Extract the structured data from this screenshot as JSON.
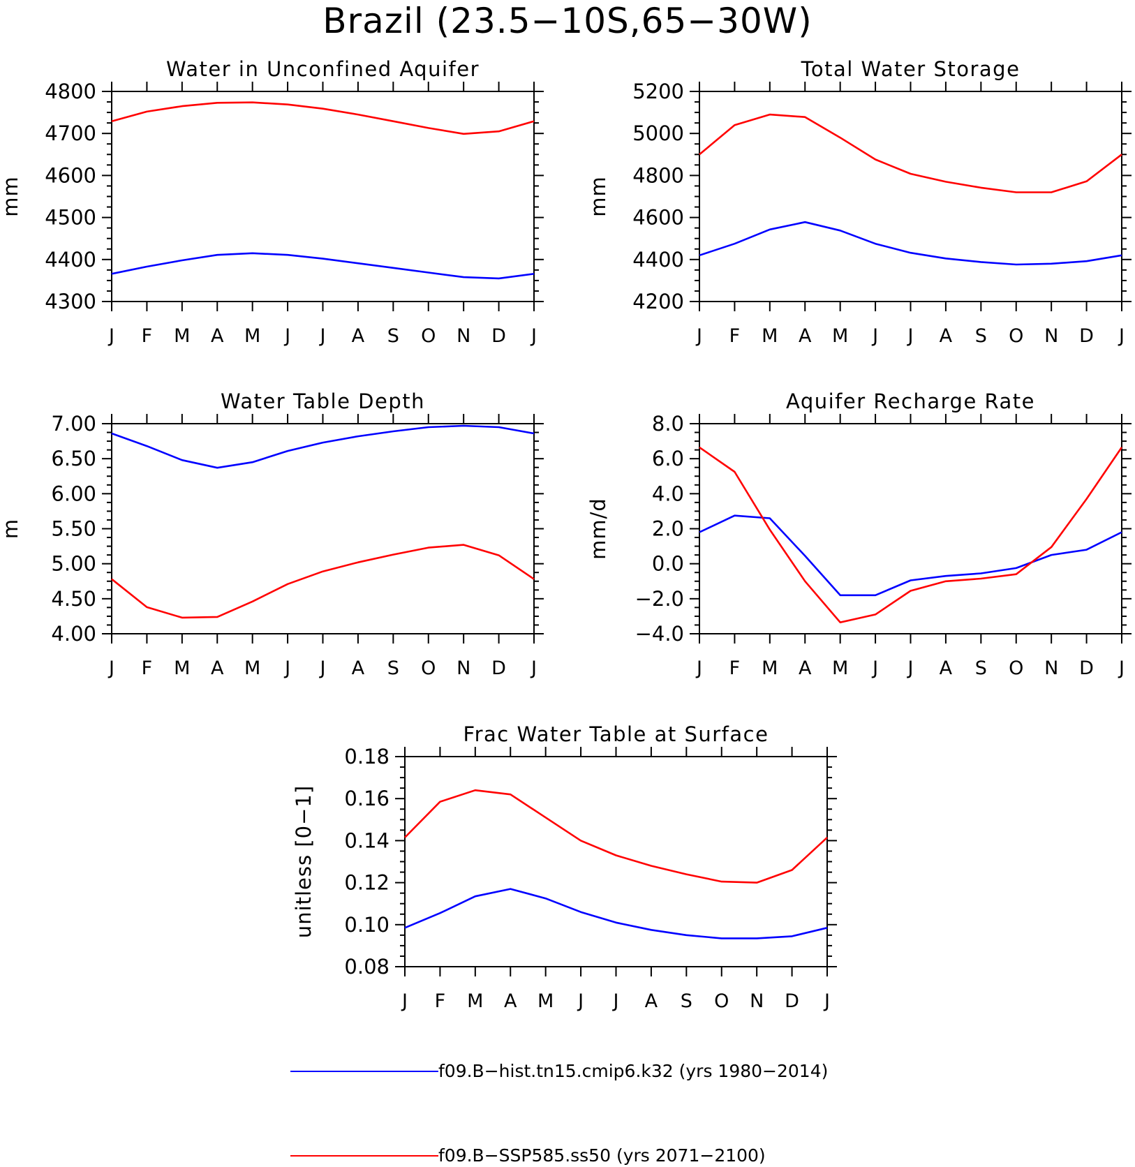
{
  "figure_title": "Brazil (23.5−10S,65−30W)",
  "colors": {
    "hist": "#0000ff",
    "ssp": "#ff0000",
    "axis": "#000000"
  },
  "legend": [
    {
      "label": "f09.B−hist.tn15.cmip6.k32 (yrs 1980−2014)",
      "color": "#0000ff"
    },
    {
      "label": "f09.B−SSP585.ss50 (yrs 2071−2100)",
      "color": "#ff0000"
    }
  ],
  "chart_data": [
    {
      "type": "line",
      "title": "Water in Unconfined Aquifer",
      "ylabel": "mm",
      "xlabel": "",
      "categories": [
        "J",
        "F",
        "M",
        "A",
        "M",
        "J",
        "J",
        "A",
        "S",
        "O",
        "N",
        "D",
        "J"
      ],
      "ylim": [
        4300,
        4800
      ],
      "yticks": [
        "4300",
        "4400",
        "4500",
        "4600",
        "4700",
        "4800"
      ],
      "series": [
        {
          "color": "#0000ff",
          "values": [
            4366,
            4383,
            4398,
            4411,
            4415,
            4411,
            4402,
            4391,
            4380,
            4369,
            4358,
            4355,
            4366
          ]
        },
        {
          "color": "#ff0000",
          "values": [
            4729,
            4752,
            4765,
            4773,
            4774,
            4769,
            4759,
            4745,
            4729,
            4713,
            4699,
            4705,
            4729
          ]
        }
      ]
    },
    {
      "type": "line",
      "title": "Total Water Storage",
      "ylabel": "mm",
      "xlabel": "",
      "categories": [
        "J",
        "F",
        "M",
        "A",
        "M",
        "J",
        "J",
        "A",
        "S",
        "O",
        "N",
        "D",
        "J"
      ],
      "ylim": [
        4200,
        5200
      ],
      "yticks": [
        "4200",
        "4400",
        "4600",
        "4800",
        "5000",
        "5200"
      ],
      "series": [
        {
          "color": "#0000ff",
          "values": [
            4420,
            4475,
            4543,
            4578,
            4538,
            4475,
            4432,
            4405,
            4388,
            4376,
            4380,
            4392,
            4420
          ]
        },
        {
          "color": "#ff0000",
          "values": [
            4900,
            5040,
            5090,
            5078,
            4980,
            4876,
            4808,
            4770,
            4742,
            4720,
            4720,
            4772,
            4900
          ]
        }
      ]
    },
    {
      "type": "line",
      "title": "Water Table Depth",
      "ylabel": "m",
      "xlabel": "",
      "categories": [
        "J",
        "F",
        "M",
        "A",
        "M",
        "J",
        "J",
        "A",
        "S",
        "O",
        "N",
        "D",
        "J"
      ],
      "ylim": [
        4.0,
        7.0
      ],
      "yticks": [
        "4.00",
        "4.50",
        "5.00",
        "5.50",
        "6.00",
        "6.50",
        "7.00"
      ],
      "series": [
        {
          "color": "#0000ff",
          "values": [
            6.86,
            6.68,
            6.48,
            6.37,
            6.45,
            6.61,
            6.73,
            6.82,
            6.89,
            6.95,
            6.97,
            6.95,
            6.86
          ]
        },
        {
          "color": "#ff0000",
          "values": [
            4.78,
            4.38,
            4.23,
            4.24,
            4.46,
            4.71,
            4.89,
            5.02,
            5.13,
            5.23,
            5.27,
            5.12,
            4.78
          ]
        }
      ]
    },
    {
      "type": "line",
      "title": "Aquifer Recharge Rate",
      "ylabel": "mm/d",
      "xlabel": "",
      "categories": [
        "J",
        "F",
        "M",
        "A",
        "M",
        "J",
        "J",
        "A",
        "S",
        "O",
        "N",
        "D",
        "J"
      ],
      "ylim": [
        -4.0,
        8.0
      ],
      "yticks": [
        "−4.0",
        "−2.0",
        "0.0",
        "2.0",
        "4.0",
        "6.0",
        "8.0"
      ],
      "series": [
        {
          "color": "#0000ff",
          "values": [
            1.8,
            2.75,
            2.6,
            0.45,
            -1.8,
            -1.8,
            -0.95,
            -0.7,
            -0.55,
            -0.25,
            0.5,
            0.8,
            1.8
          ]
        },
        {
          "color": "#ff0000",
          "values": [
            6.65,
            5.25,
            1.95,
            -1.0,
            -3.35,
            -2.9,
            -1.55,
            -1.0,
            -0.85,
            -0.6,
            0.95,
            3.7,
            6.65
          ]
        }
      ]
    },
    {
      "type": "line",
      "title": "Frac Water Table at Surface",
      "ylabel": "unitless [0−1]",
      "xlabel": "",
      "categories": [
        "J",
        "F",
        "M",
        "A",
        "M",
        "J",
        "J",
        "A",
        "S",
        "O",
        "N",
        "D",
        "J"
      ],
      "ylim": [
        0.08,
        0.18
      ],
      "yticks": [
        "0.08",
        "0.10",
        "0.12",
        "0.14",
        "0.16",
        "0.18"
      ],
      "series": [
        {
          "color": "#0000ff",
          "values": [
            0.0985,
            0.1055,
            0.1135,
            0.117,
            0.1125,
            0.106,
            0.101,
            0.0975,
            0.095,
            0.0935,
            0.0935,
            0.0945,
            0.0985
          ]
        },
        {
          "color": "#ff0000",
          "values": [
            0.1415,
            0.1585,
            0.164,
            0.162,
            0.151,
            0.14,
            0.133,
            0.128,
            0.124,
            0.1205,
            0.12,
            0.126,
            0.1415
          ]
        }
      ]
    }
  ]
}
